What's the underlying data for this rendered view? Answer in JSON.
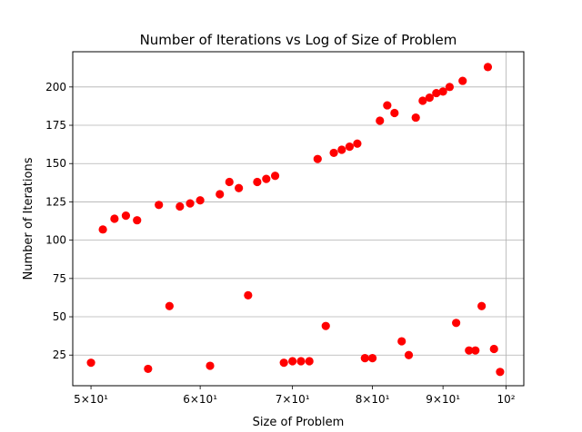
{
  "chart_data": {
    "type": "scatter",
    "title": "Number of Iterations vs Log of Size of Problem",
    "xlabel": "Size of Problem",
    "ylabel": "Number of Iterations",
    "xscale": "log",
    "xlim": [
      48.5,
      103
    ],
    "ylim": [
      5,
      223
    ],
    "grid": "y-and-major-x",
    "marker_color": "#ff0000",
    "x_ticks": [
      {
        "value": 50,
        "label": "5×10¹"
      },
      {
        "value": 60,
        "label": "6×10¹"
      },
      {
        "value": 70,
        "label": "7×10¹"
      },
      {
        "value": 80,
        "label": "8×10¹"
      },
      {
        "value": 90,
        "label": "9×10¹"
      },
      {
        "value": 100,
        "label": "10²"
      }
    ],
    "y_ticks": [
      {
        "value": 25,
        "label": "25"
      },
      {
        "value": 50,
        "label": "50"
      },
      {
        "value": 75,
        "label": "75"
      },
      {
        "value": 100,
        "label": "100"
      },
      {
        "value": 125,
        "label": "125"
      },
      {
        "value": 150,
        "label": "150"
      },
      {
        "value": 175,
        "label": "175"
      },
      {
        "value": 200,
        "label": "200"
      }
    ],
    "points": [
      [
        50,
        20
      ],
      [
        51,
        107
      ],
      [
        52,
        114
      ],
      [
        53,
        116
      ],
      [
        54,
        113
      ],
      [
        55,
        16
      ],
      [
        56,
        123
      ],
      [
        57,
        57
      ],
      [
        58,
        122
      ],
      [
        59,
        124
      ],
      [
        60,
        126
      ],
      [
        61,
        18
      ],
      [
        62,
        130
      ],
      [
        63,
        138
      ],
      [
        64,
        134
      ],
      [
        65,
        64
      ],
      [
        66,
        138
      ],
      [
        67,
        140
      ],
      [
        68,
        142
      ],
      [
        69,
        20
      ],
      [
        70,
        21
      ],
      [
        71,
        21
      ],
      [
        72,
        21
      ],
      [
        73,
        153
      ],
      [
        74,
        44
      ],
      [
        75,
        157
      ],
      [
        76,
        159
      ],
      [
        77,
        161
      ],
      [
        78,
        163
      ],
      [
        79,
        23
      ],
      [
        80,
        23
      ],
      [
        81,
        178
      ],
      [
        82,
        188
      ],
      [
        83,
        183
      ],
      [
        84,
        34
      ],
      [
        85,
        25
      ],
      [
        86,
        180
      ],
      [
        87,
        191
      ],
      [
        88,
        193
      ],
      [
        89,
        196
      ],
      [
        90,
        197
      ],
      [
        91,
        200
      ],
      [
        92,
        46
      ],
      [
        93,
        204
      ],
      [
        94,
        28
      ],
      [
        95,
        28
      ],
      [
        96,
        57
      ],
      [
        97,
        213
      ],
      [
        98,
        29
      ],
      [
        99,
        14
      ]
    ]
  }
}
